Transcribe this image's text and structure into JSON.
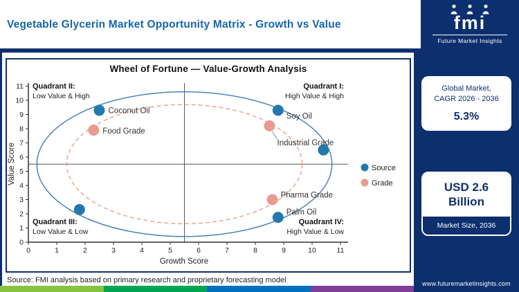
{
  "header": {
    "title": "Vegetable Glycerin Market Opportunity Matrix - Growth vs Value"
  },
  "logo": {
    "brand": "fmi",
    "name": "Future Market Insights"
  },
  "sidebar": {
    "cagr_card": {
      "line1": "Global Market,",
      "line2": "CAGR 2026 - 2036",
      "value": "5.3%"
    },
    "size_card": {
      "value": "USD 2.6 Billion",
      "label": "Market Size, 2036"
    },
    "website": "www.futuremarketinsights.com"
  },
  "footer": {
    "source_note": "Source: FMI analysis based on primary research and proprietary forecasting model"
  },
  "colors": {
    "navy": "#0d2f6e",
    "title_blue": "#1565ad",
    "source_blue": "#2379ae",
    "grade_pink": "#e89c8e",
    "stripe": [
      "#86c440",
      "#00a551",
      "#0071bc",
      "#7f3f98"
    ]
  },
  "chart_data": {
    "type": "scatter",
    "title": "Wheel of Fortune — Value-Growth Analysis",
    "xlabel": "Growth Score",
    "ylabel": "Value Score",
    "xlim": [
      0,
      11
    ],
    "ylim": [
      0,
      11
    ],
    "grid": false,
    "quadrant_divider": {
      "x": 5.5,
      "y": 5.5
    },
    "quadrants": [
      {
        "name": "Quadrant II:",
        "desc": "Low Value & High",
        "position": "top-left"
      },
      {
        "name": "Quadrant I:",
        "desc": "High Value & High",
        "position": "top-right"
      },
      {
        "name": "Quadrant III:",
        "desc": "Low Value & Low",
        "position": "bottom-left"
      },
      {
        "name": "Quadrant IV:",
        "desc": "High Value & Low",
        "position": "bottom-right"
      }
    ],
    "ellipses": [
      {
        "series": "Source",
        "cx": 5.5,
        "cy": 5.5,
        "rx": 5.2,
        "ry": 5.1,
        "style": "solid",
        "color": "#3f7cb5"
      },
      {
        "series": "Grade",
        "cx": 5.5,
        "cy": 5.5,
        "rx": 4.15,
        "ry": 4.2,
        "style": "dashed",
        "color": "#e8a08f"
      }
    ],
    "series": [
      {
        "name": "Source",
        "color": "#2379ae",
        "points": [
          {
            "label": "Coconut Oil",
            "x": 2.5,
            "y": 9.3,
            "dx": 13,
            "dy": 4
          },
          {
            "label": "Soy Oil",
            "x": 8.8,
            "y": 9.3,
            "dx": 12,
            "dy": 12
          },
          {
            "label": "Palm Oil",
            "x": 8.8,
            "y": 1.75,
            "dx": 12,
            "dy": -4
          },
          {
            "label": "",
            "x": 1.8,
            "y": 2.3
          },
          {
            "label": "",
            "x": 10.4,
            "y": 6.5
          }
        ]
      },
      {
        "name": "Grade",
        "color": "#e89c8e",
        "points": [
          {
            "label": "Food Grade",
            "x": 2.3,
            "y": 7.9,
            "dx": 13,
            "dy": 5
          },
          {
            "label": "Industrial Grade",
            "x": 8.5,
            "y": 8.2,
            "dx": 11,
            "dy": 28,
            "leader": true
          },
          {
            "label": "Pharma Grade",
            "x": 8.6,
            "y": 3.0,
            "dx": 12,
            "dy": -3
          }
        ]
      }
    ],
    "legend": [
      {
        "label": "Source",
        "color": "#2379ae"
      },
      {
        "label": "Grade",
        "color": "#e89c8e"
      }
    ],
    "legend_position": "right"
  }
}
